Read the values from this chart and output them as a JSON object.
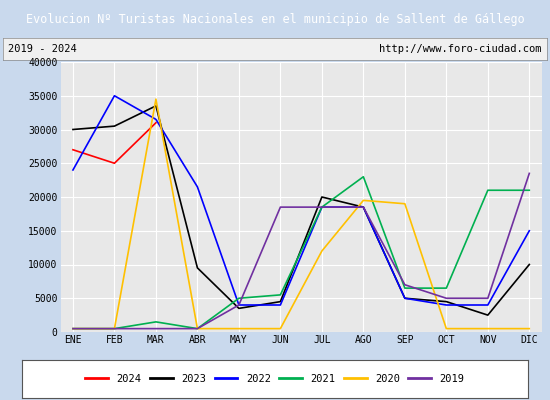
{
  "title": "Evolucion Nº Turistas Nacionales en el municipio de Sallent de Gállego",
  "subtitle_left": "2019 - 2024",
  "subtitle_right": "http://www.foro-ciudad.com",
  "title_bg_color": "#4472c4",
  "title_fg_color": "#ffffff",
  "plot_bg_color": "#e8e8e8",
  "figure_bg_color": "#c9d9ed",
  "months": [
    "ENE",
    "FEB",
    "MAR",
    "ABR",
    "MAY",
    "JUN",
    "JUL",
    "AGO",
    "SEP",
    "OCT",
    "NOV",
    "DIC"
  ],
  "series": {
    "2024": {
      "color": "#ff0000",
      "values": [
        27000,
        25000,
        31000,
        null,
        null,
        null,
        null,
        null,
        null,
        null,
        null,
        null
      ]
    },
    "2023": {
      "color": "#000000",
      "values": [
        30000,
        30500,
        33500,
        9500,
        3500,
        4500,
        20000,
        18500,
        5000,
        4500,
        2500,
        10000
      ]
    },
    "2022": {
      "color": "#0000ff",
      "values": [
        24000,
        35000,
        31500,
        21500,
        4000,
        4000,
        18500,
        18500,
        5000,
        4000,
        4000,
        15000
      ]
    },
    "2021": {
      "color": "#00b050",
      "values": [
        500,
        500,
        1500,
        500,
        5000,
        5500,
        18500,
        23000,
        6500,
        6500,
        21000,
        21000
      ]
    },
    "2020": {
      "color": "#ffc000",
      "values": [
        500,
        500,
        34500,
        500,
        500,
        500,
        12000,
        19500,
        19000,
        500,
        500,
        500
      ]
    },
    "2019": {
      "color": "#7030a0",
      "values": [
        500,
        500,
        500,
        500,
        4000,
        18500,
        18500,
        18500,
        7000,
        5000,
        5000,
        23500
      ]
    }
  },
  "ylim": [
    0,
    40000
  ],
  "yticks": [
    0,
    5000,
    10000,
    15000,
    20000,
    25000,
    30000,
    35000,
    40000
  ],
  "legend_order": [
    "2024",
    "2023",
    "2022",
    "2021",
    "2020",
    "2019"
  ]
}
